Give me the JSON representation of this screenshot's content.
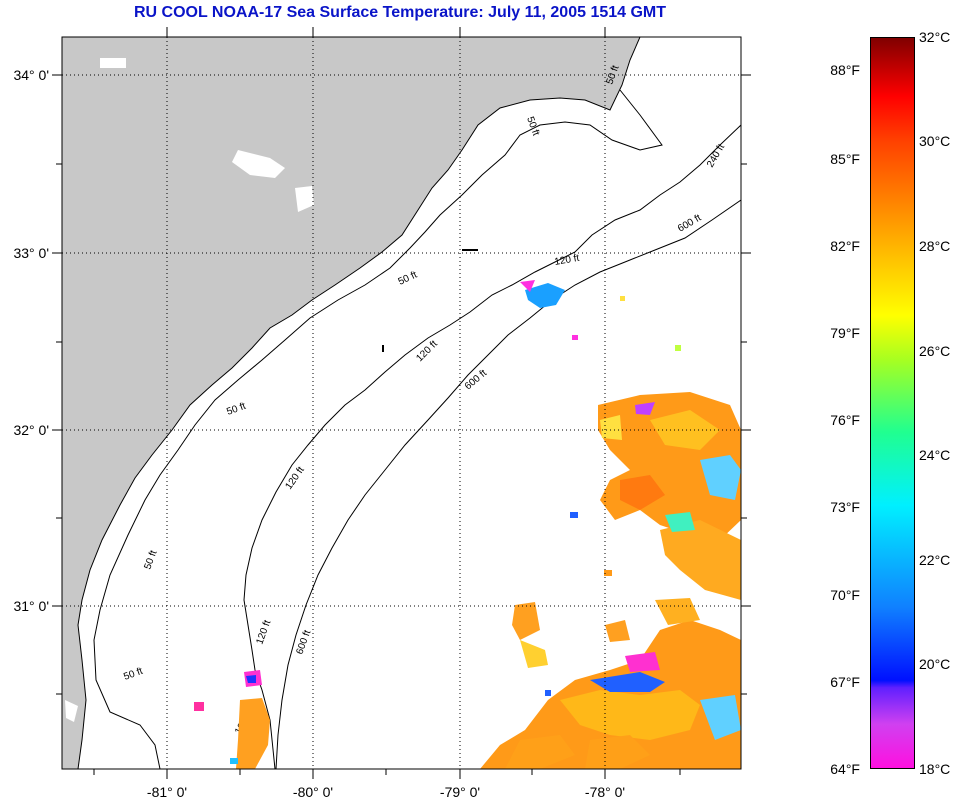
{
  "title": "RU COOL  NOAA-17  Sea Surface Temperature:  July 11, 2005 1514 GMT",
  "map": {
    "latitude_labels": [
      "34° 0'",
      "33° 0'",
      "32° 0'",
      "31° 0'"
    ],
    "longitude_labels": [
      "-81° 0'",
      "-80° 0'",
      "-79° 0'",
      "-78° 0'"
    ],
    "contour_labels": [
      "50 ft",
      "50 ft",
      "50 ft",
      "50 ft",
      "50 ft",
      "50 ft",
      "120 ft",
      "120 ft",
      "120 ft",
      "120 ft",
      "120 ft",
      "600 ft",
      "600 ft",
      "600 ft",
      "240 ft"
    ],
    "colors": {
      "land": "#c8c8c8",
      "ocean": "#ffffff",
      "title": "#0a14c8"
    }
  },
  "colorbar": {
    "fahrenheit_labels": [
      "88°F",
      "85°F",
      "82°F",
      "79°F",
      "76°F",
      "73°F",
      "70°F",
      "67°F",
      "64°F"
    ],
    "celsius_labels": [
      "32°C",
      "30°C",
      "28°C",
      "26°C",
      "24°C",
      "22°C",
      "20°C",
      "18°C"
    ]
  }
}
